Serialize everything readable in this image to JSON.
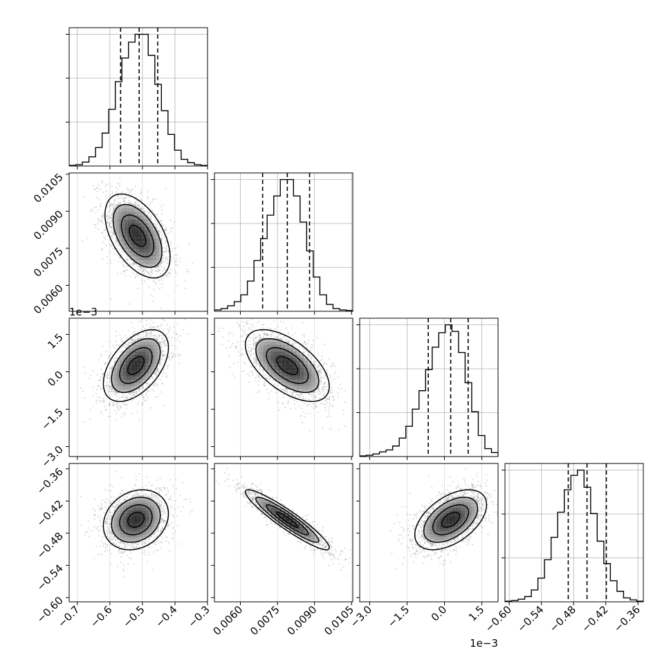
{
  "chart_data": {
    "type": "corner",
    "grid": true,
    "parameters": [
      {
        "index": 0,
        "median": -0.51,
        "quantiles": [
          -0.567,
          -0.51,
          -0.453
        ],
        "xlim": [
          -0.725,
          -0.3
        ],
        "ticks": [
          -0.7,
          -0.6,
          -0.5,
          -0.4,
          -0.3
        ],
        "tick_labels": [
          "−0.7",
          "−0.6",
          "−0.5",
          "−0.4",
          "−0.3"
        ],
        "offset": ""
      },
      {
        "index": 1,
        "median": 0.0079,
        "quantiles": [
          0.0069,
          0.0079,
          0.0088
        ],
        "xlim": [
          0.00495,
          0.01055
        ],
        "ticks": [
          0.006,
          0.0075,
          0.009,
          0.0105
        ],
        "tick_labels": [
          "0.0060",
          "0.0075",
          "0.0090",
          "0.0105"
        ],
        "offset": ""
      },
      {
        "index": 2,
        "median": 0.25,
        "quantiles": [
          -0.65,
          0.25,
          0.95
        ],
        "xlim": [
          -3.4,
          2.15
        ],
        "ticks": [
          -3.0,
          -1.5,
          0.0,
          1.5
        ],
        "tick_labels": [
          "−3.0",
          "−1.5",
          "0.0",
          "1.5"
        ],
        "offset": "1e−3"
      },
      {
        "index": 3,
        "median": -0.455,
        "quantiles": [
          -0.49,
          -0.455,
          -0.419
        ],
        "xlim": [
          -0.608,
          -0.35
        ],
        "ticks": [
          -0.6,
          -0.54,
          -0.48,
          -0.42,
          -0.36
        ],
        "tick_labels": [
          "−0.60",
          "−0.54",
          "−0.48",
          "−0.42",
          "−0.36"
        ],
        "offset": ""
      }
    ],
    "histograms": [
      {
        "param": 0,
        "bins_lo": -0.725,
        "bins_hi": -0.3,
        "counts": [
          0.005,
          0.01,
          0.03,
          0.07,
          0.14,
          0.25,
          0.43,
          0.64,
          0.82,
          0.94,
          1.0,
          1.0,
          0.84,
          0.62,
          0.42,
          0.24,
          0.12,
          0.05,
          0.025,
          0.01,
          0.004
        ]
      },
      {
        "param": 1,
        "bins_lo": 0.00495,
        "bins_hi": 0.01055,
        "counts": [
          0.01,
          0.02,
          0.04,
          0.07,
          0.12,
          0.22,
          0.37,
          0.53,
          0.7,
          0.84,
          0.96,
          0.96,
          0.84,
          0.65,
          0.44,
          0.25,
          0.12,
          0.05,
          0.02,
          0.01,
          0.005
        ]
      },
      {
        "param": 2,
        "bins_lo": -3.4,
        "bins_hi": 2.15,
        "counts": [
          0.005,
          0.01,
          0.02,
          0.035,
          0.05,
          0.08,
          0.14,
          0.23,
          0.36,
          0.5,
          0.66,
          0.83,
          0.94,
          1.0,
          0.95,
          0.79,
          0.56,
          0.34,
          0.16,
          0.06,
          0.03
        ]
      },
      {
        "param": 3,
        "bins_lo": -0.608,
        "bins_hi": -0.35,
        "counts": [
          0.005,
          0.01,
          0.02,
          0.04,
          0.09,
          0.18,
          0.32,
          0.49,
          0.68,
          0.85,
          0.96,
          1.0,
          0.87,
          0.67,
          0.46,
          0.29,
          0.16,
          0.08,
          0.03,
          0.015,
          0.005
        ]
      }
    ],
    "pairs": [
      {
        "row": 1,
        "col": 0,
        "mean": [
          -0.515,
          0.008
        ],
        "sd": [
          0.05,
          0.00085
        ],
        "rho": -0.5
      },
      {
        "row": 2,
        "col": 0,
        "mean": [
          -0.52,
          0.25
        ],
        "sd": [
          0.05,
          0.72
        ],
        "rho": 0.5
      },
      {
        "row": 2,
        "col": 1,
        "mean": [
          0.0079,
          0.25
        ],
        "sd": [
          0.00085,
          0.72
        ],
        "rho": -0.58
      },
      {
        "row": 3,
        "col": 0,
        "mean": [
          -0.52,
          -0.455
        ],
        "sd": [
          0.05,
          0.028
        ],
        "rho": 0.2
      },
      {
        "row": 3,
        "col": 1,
        "mean": [
          0.0079,
          -0.455
        ],
        "sd": [
          0.00085,
          0.028
        ],
        "rho": -0.93
      },
      {
        "row": 3,
        "col": 2,
        "mean": [
          0.25,
          -0.455
        ],
        "sd": [
          0.72,
          0.028
        ],
        "rho": 0.5
      }
    ],
    "contour_levels_sigma": [
      0.5,
      1.0,
      1.5,
      2.0
    ]
  }
}
